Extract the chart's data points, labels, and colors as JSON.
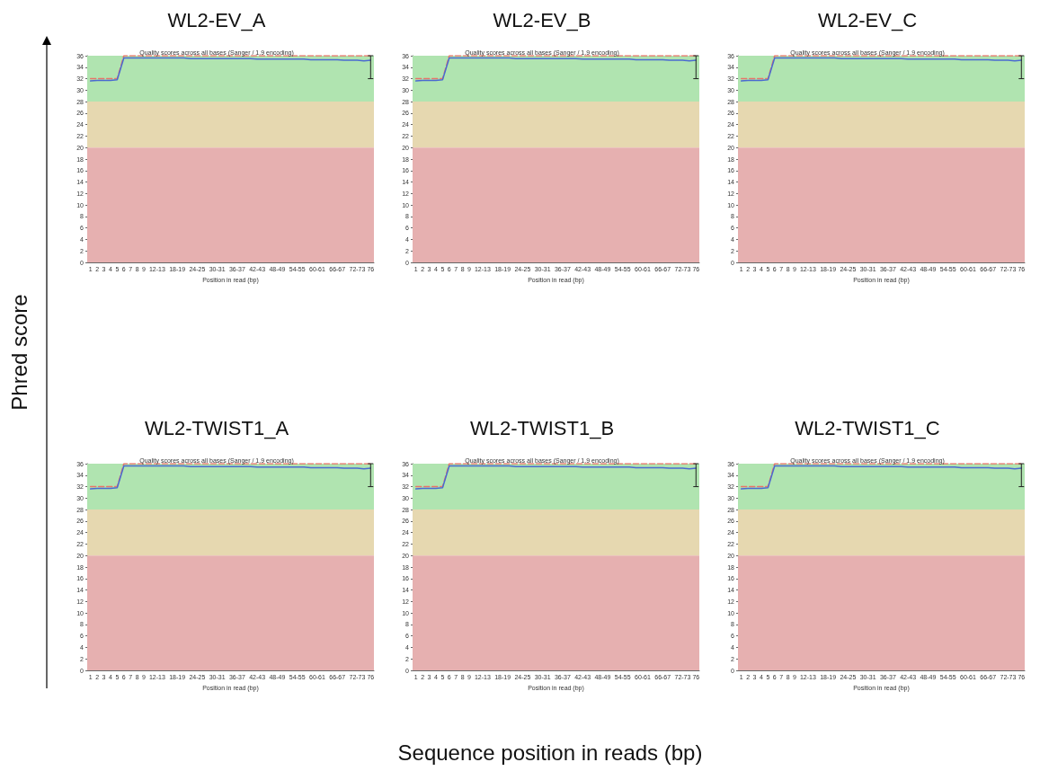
{
  "chart_data": [
    {
      "type": "line",
      "title": "WL2-EV_A",
      "subtitle": "Quality scores across all bases (Sanger / 1.9 encoding)",
      "xlabel": "Position in read (bp)",
      "categories": [
        "1",
        "2",
        "3",
        "4",
        "5",
        "6",
        "7",
        "8",
        "9",
        null,
        "12-13",
        null,
        null,
        "18-19",
        null,
        null,
        "24-25",
        null,
        null,
        "30-31",
        null,
        null,
        "36-37",
        null,
        null,
        "42-43",
        null,
        null,
        "48-49",
        null,
        null,
        "54-55",
        null,
        null,
        "60-61",
        null,
        null,
        "66-67",
        null,
        null,
        "72-73",
        null,
        "76"
      ],
      "ylim": [
        0,
        36
      ],
      "yticks": [
        0,
        2,
        4,
        6,
        8,
        10,
        12,
        14,
        16,
        18,
        20,
        22,
        24,
        26,
        28,
        30,
        32,
        34,
        36
      ],
      "grid": false,
      "marker": "none",
      "bands": [
        {
          "axis": "y",
          "from": 28,
          "to": 36,
          "color": "#b0e4b0"
        },
        {
          "axis": "y",
          "from": 20,
          "to": 28,
          "color": "#e6d8b0"
        },
        {
          "axis": "y",
          "from": 0,
          "to": 20,
          "color": "#e6b0b0"
        }
      ],
      "series": [
        {
          "color": "#e8756a",
          "line_style": "dashed",
          "values": [
            32,
            32,
            32,
            32,
            32,
            36,
            36,
            36,
            36,
            36,
            36,
            36,
            36,
            36,
            36,
            36,
            36,
            36,
            36,
            36,
            36,
            36,
            36,
            36,
            36,
            36,
            36,
            36,
            36,
            36,
            36,
            36,
            36,
            36,
            36,
            36,
            36,
            36,
            36,
            36,
            36,
            36,
            36
          ],
          "errors": [
            null,
            null,
            null,
            null,
            null,
            null,
            null,
            null,
            null,
            null,
            null,
            null,
            null,
            null,
            null,
            null,
            null,
            null,
            null,
            null,
            null,
            null,
            null,
            null,
            null,
            null,
            null,
            null,
            null,
            null,
            null,
            null,
            null,
            null,
            null,
            null,
            null,
            null,
            null,
            null,
            null,
            null,
            [
              32,
              36
            ]
          ]
        },
        {
          "color": "#4a6ad0",
          "line_style": "solid",
          "values": [
            31.6,
            31.7,
            31.7,
            31.7,
            31.8,
            35.6,
            35.6,
            35.6,
            35.6,
            35.6,
            35.6,
            35.6,
            35.6,
            35.6,
            35.6,
            35.5,
            35.5,
            35.5,
            35.5,
            35.5,
            35.5,
            35.5,
            35.5,
            35.5,
            35.5,
            35.4,
            35.4,
            35.4,
            35.4,
            35.4,
            35.4,
            35.4,
            35.4,
            35.3,
            35.3,
            35.3,
            35.3,
            35.3,
            35.2,
            35.2,
            35.2,
            35.1,
            35.2
          ]
        }
      ]
    },
    {
      "type": "line",
      "title": "WL2-EV_B",
      "subtitle": "Quality scores across all bases (Sanger / 1.9 encoding)",
      "xlabel": "Position in read (bp)",
      "categories": [
        "1",
        "2",
        "3",
        "4",
        "5",
        "6",
        "7",
        "8",
        "9",
        null,
        "12-13",
        null,
        null,
        "18-19",
        null,
        null,
        "24-25",
        null,
        null,
        "30-31",
        null,
        null,
        "36-37",
        null,
        null,
        "42-43",
        null,
        null,
        "48-49",
        null,
        null,
        "54-55",
        null,
        null,
        "60-61",
        null,
        null,
        "66-67",
        null,
        null,
        "72-73",
        null,
        "76"
      ],
      "ylim": [
        0,
        36
      ],
      "yticks": [
        0,
        2,
        4,
        6,
        8,
        10,
        12,
        14,
        16,
        18,
        20,
        22,
        24,
        26,
        28,
        30,
        32,
        34,
        36
      ],
      "grid": false,
      "marker": "none",
      "bands": [
        {
          "axis": "y",
          "from": 28,
          "to": 36,
          "color": "#b0e4b0"
        },
        {
          "axis": "y",
          "from": 20,
          "to": 28,
          "color": "#e6d8b0"
        },
        {
          "axis": "y",
          "from": 0,
          "to": 20,
          "color": "#e6b0b0"
        }
      ],
      "series": [
        {
          "color": "#e8756a",
          "line_style": "dashed",
          "values": [
            32,
            32,
            32,
            32,
            32,
            36,
            36,
            36,
            36,
            36,
            36,
            36,
            36,
            36,
            36,
            36,
            36,
            36,
            36,
            36,
            36,
            36,
            36,
            36,
            36,
            36,
            36,
            36,
            36,
            36,
            36,
            36,
            36,
            36,
            36,
            36,
            36,
            36,
            36,
            36,
            36,
            36,
            36
          ],
          "errors": [
            null,
            null,
            null,
            null,
            null,
            null,
            null,
            null,
            null,
            null,
            null,
            null,
            null,
            null,
            null,
            null,
            null,
            null,
            null,
            null,
            null,
            null,
            null,
            null,
            null,
            null,
            null,
            null,
            null,
            null,
            null,
            null,
            null,
            null,
            null,
            null,
            null,
            null,
            null,
            null,
            null,
            null,
            [
              32,
              36
            ]
          ]
        },
        {
          "color": "#4a6ad0",
          "line_style": "solid",
          "values": [
            31.6,
            31.7,
            31.7,
            31.7,
            31.8,
            35.6,
            35.6,
            35.6,
            35.6,
            35.6,
            35.6,
            35.6,
            35.6,
            35.6,
            35.6,
            35.5,
            35.5,
            35.5,
            35.5,
            35.5,
            35.5,
            35.5,
            35.5,
            35.5,
            35.5,
            35.4,
            35.4,
            35.4,
            35.4,
            35.4,
            35.4,
            35.4,
            35.4,
            35.3,
            35.3,
            35.3,
            35.3,
            35.3,
            35.2,
            35.2,
            35.2,
            35.1,
            35.2
          ]
        }
      ]
    },
    {
      "type": "line",
      "title": "WL2-EV_C",
      "subtitle": "Quality scores across all bases (Sanger / 1.9 encoding)",
      "xlabel": "Position in read (bp)",
      "categories": [
        "1",
        "2",
        "3",
        "4",
        "5",
        "6",
        "7",
        "8",
        "9",
        null,
        "12-13",
        null,
        null,
        "18-19",
        null,
        null,
        "24-25",
        null,
        null,
        "30-31",
        null,
        null,
        "36-37",
        null,
        null,
        "42-43",
        null,
        null,
        "48-49",
        null,
        null,
        "54-55",
        null,
        null,
        "60-61",
        null,
        null,
        "66-67",
        null,
        null,
        "72-73",
        null,
        "76"
      ],
      "ylim": [
        0,
        36
      ],
      "yticks": [
        0,
        2,
        4,
        6,
        8,
        10,
        12,
        14,
        16,
        18,
        20,
        22,
        24,
        26,
        28,
        30,
        32,
        34,
        36
      ],
      "grid": false,
      "marker": "none",
      "bands": [
        {
          "axis": "y",
          "from": 28,
          "to": 36,
          "color": "#b0e4b0"
        },
        {
          "axis": "y",
          "from": 20,
          "to": 28,
          "color": "#e6d8b0"
        },
        {
          "axis": "y",
          "from": 0,
          "to": 20,
          "color": "#e6b0b0"
        }
      ],
      "series": [
        {
          "color": "#e8756a",
          "line_style": "dashed",
          "values": [
            32,
            32,
            32,
            32,
            32,
            36,
            36,
            36,
            36,
            36,
            36,
            36,
            36,
            36,
            36,
            36,
            36,
            36,
            36,
            36,
            36,
            36,
            36,
            36,
            36,
            36,
            36,
            36,
            36,
            36,
            36,
            36,
            36,
            36,
            36,
            36,
            36,
            36,
            36,
            36,
            36,
            36,
            36
          ],
          "errors": [
            null,
            null,
            null,
            null,
            null,
            null,
            null,
            null,
            null,
            null,
            null,
            null,
            null,
            null,
            null,
            null,
            null,
            null,
            null,
            null,
            null,
            null,
            null,
            null,
            null,
            null,
            null,
            null,
            null,
            null,
            null,
            null,
            null,
            null,
            null,
            null,
            null,
            null,
            null,
            null,
            null,
            null,
            [
              32,
              36
            ]
          ]
        },
        {
          "color": "#4a6ad0",
          "line_style": "solid",
          "values": [
            31.6,
            31.7,
            31.7,
            31.7,
            31.8,
            35.6,
            35.6,
            35.6,
            35.6,
            35.6,
            35.6,
            35.6,
            35.6,
            35.6,
            35.6,
            35.5,
            35.5,
            35.5,
            35.5,
            35.5,
            35.5,
            35.5,
            35.5,
            35.5,
            35.5,
            35.4,
            35.4,
            35.4,
            35.4,
            35.4,
            35.4,
            35.4,
            35.4,
            35.3,
            35.3,
            35.3,
            35.3,
            35.3,
            35.2,
            35.2,
            35.2,
            35.1,
            35.2
          ]
        }
      ]
    },
    {
      "type": "line",
      "title": "WL2-TWIST1_A",
      "subtitle": "Quality scores across all bases (Sanger / 1.9 encoding)",
      "xlabel": "Position in read (bp)",
      "categories": [
        "1",
        "2",
        "3",
        "4",
        "5",
        "6",
        "7",
        "8",
        "9",
        null,
        "12-13",
        null,
        null,
        "18-19",
        null,
        null,
        "24-25",
        null,
        null,
        "30-31",
        null,
        null,
        "36-37",
        null,
        null,
        "42-43",
        null,
        null,
        "48-49",
        null,
        null,
        "54-55",
        null,
        null,
        "60-61",
        null,
        null,
        "66-67",
        null,
        null,
        "72-73",
        null,
        "76"
      ],
      "ylim": [
        0,
        36
      ],
      "yticks": [
        0,
        2,
        4,
        6,
        8,
        10,
        12,
        14,
        16,
        18,
        20,
        22,
        24,
        26,
        28,
        30,
        32,
        34,
        36
      ],
      "grid": false,
      "marker": "none",
      "bands": [
        {
          "axis": "y",
          "from": 28,
          "to": 36,
          "color": "#b0e4b0"
        },
        {
          "axis": "y",
          "from": 20,
          "to": 28,
          "color": "#e6d8b0"
        },
        {
          "axis": "y",
          "from": 0,
          "to": 20,
          "color": "#e6b0b0"
        }
      ],
      "series": [
        {
          "color": "#e8756a",
          "line_style": "dashed",
          "values": [
            32,
            32,
            32,
            32,
            32,
            36,
            36,
            36,
            36,
            36,
            36,
            36,
            36,
            36,
            36,
            36,
            36,
            36,
            36,
            36,
            36,
            36,
            36,
            36,
            36,
            36,
            36,
            36,
            36,
            36,
            36,
            36,
            36,
            36,
            36,
            36,
            36,
            36,
            36,
            36,
            36,
            36,
            36
          ],
          "errors": [
            null,
            null,
            null,
            null,
            null,
            null,
            null,
            null,
            null,
            null,
            null,
            null,
            null,
            null,
            null,
            null,
            null,
            null,
            null,
            null,
            null,
            null,
            null,
            null,
            null,
            null,
            null,
            null,
            null,
            null,
            null,
            null,
            null,
            null,
            null,
            null,
            null,
            null,
            null,
            null,
            null,
            null,
            [
              32,
              36
            ]
          ]
        },
        {
          "color": "#4a6ad0",
          "line_style": "solid",
          "values": [
            31.6,
            31.7,
            31.7,
            31.7,
            31.8,
            35.6,
            35.6,
            35.6,
            35.6,
            35.6,
            35.6,
            35.6,
            35.6,
            35.6,
            35.6,
            35.5,
            35.5,
            35.5,
            35.5,
            35.5,
            35.5,
            35.5,
            35.5,
            35.5,
            35.5,
            35.4,
            35.4,
            35.4,
            35.4,
            35.4,
            35.4,
            35.4,
            35.4,
            35.3,
            35.3,
            35.3,
            35.3,
            35.3,
            35.2,
            35.2,
            35.2,
            35.1,
            35.2
          ]
        }
      ]
    },
    {
      "type": "line",
      "title": "WL2-TWIST1_B",
      "subtitle": "Quality scores across all bases (Sanger / 1.9 encoding)",
      "xlabel": "Position in read (bp)",
      "categories": [
        "1",
        "2",
        "3",
        "4",
        "5",
        "6",
        "7",
        "8",
        "9",
        null,
        "12-13",
        null,
        null,
        "18-19",
        null,
        null,
        "24-25",
        null,
        null,
        "30-31",
        null,
        null,
        "36-37",
        null,
        null,
        "42-43",
        null,
        null,
        "48-49",
        null,
        null,
        "54-55",
        null,
        null,
        "60-61",
        null,
        null,
        "66-67",
        null,
        null,
        "72-73",
        null,
        "76"
      ],
      "ylim": [
        0,
        36
      ],
      "yticks": [
        0,
        2,
        4,
        6,
        8,
        10,
        12,
        14,
        16,
        18,
        20,
        22,
        24,
        26,
        28,
        30,
        32,
        34,
        36
      ],
      "grid": false,
      "marker": "none",
      "bands": [
        {
          "axis": "y",
          "from": 28,
          "to": 36,
          "color": "#b0e4b0"
        },
        {
          "axis": "y",
          "from": 20,
          "to": 28,
          "color": "#e6d8b0"
        },
        {
          "axis": "y",
          "from": 0,
          "to": 20,
          "color": "#e6b0b0"
        }
      ],
      "series": [
        {
          "color": "#e8756a",
          "line_style": "dashed",
          "values": [
            32,
            32,
            32,
            32,
            32,
            36,
            36,
            36,
            36,
            36,
            36,
            36,
            36,
            36,
            36,
            36,
            36,
            36,
            36,
            36,
            36,
            36,
            36,
            36,
            36,
            36,
            36,
            36,
            36,
            36,
            36,
            36,
            36,
            36,
            36,
            36,
            36,
            36,
            36,
            36,
            36,
            36,
            36
          ],
          "errors": [
            null,
            null,
            null,
            null,
            null,
            null,
            null,
            null,
            null,
            null,
            null,
            null,
            null,
            null,
            null,
            null,
            null,
            null,
            null,
            null,
            null,
            null,
            null,
            null,
            null,
            null,
            null,
            null,
            null,
            null,
            null,
            null,
            null,
            null,
            null,
            null,
            null,
            null,
            null,
            null,
            null,
            null,
            [
              32,
              36
            ]
          ]
        },
        {
          "color": "#4a6ad0",
          "line_style": "solid",
          "values": [
            31.6,
            31.7,
            31.7,
            31.7,
            31.8,
            35.6,
            35.6,
            35.6,
            35.6,
            35.6,
            35.6,
            35.6,
            35.6,
            35.6,
            35.6,
            35.5,
            35.5,
            35.5,
            35.5,
            35.5,
            35.5,
            35.5,
            35.5,
            35.5,
            35.5,
            35.4,
            35.4,
            35.4,
            35.4,
            35.4,
            35.4,
            35.4,
            35.4,
            35.3,
            35.3,
            35.3,
            35.3,
            35.3,
            35.2,
            35.2,
            35.2,
            35.1,
            35.2
          ]
        }
      ]
    },
    {
      "type": "line",
      "title": "WL2-TWIST1_C",
      "subtitle": "Quality scores across all bases (Sanger / 1.9 encoding)",
      "xlabel": "Position in read (bp)",
      "categories": [
        "1",
        "2",
        "3",
        "4",
        "5",
        "6",
        "7",
        "8",
        "9",
        null,
        "12-13",
        null,
        null,
        "18-19",
        null,
        null,
        "24-25",
        null,
        null,
        "30-31",
        null,
        null,
        "36-37",
        null,
        null,
        "42-43",
        null,
        null,
        "48-49",
        null,
        null,
        "54-55",
        null,
        null,
        "60-61",
        null,
        null,
        "66-67",
        null,
        null,
        "72-73",
        null,
        "76"
      ],
      "ylim": [
        0,
        36
      ],
      "yticks": [
        0,
        2,
        4,
        6,
        8,
        10,
        12,
        14,
        16,
        18,
        20,
        22,
        24,
        26,
        28,
        30,
        32,
        34,
        36
      ],
      "grid": false,
      "marker": "none",
      "bands": [
        {
          "axis": "y",
          "from": 28,
          "to": 36,
          "color": "#b0e4b0"
        },
        {
          "axis": "y",
          "from": 20,
          "to": 28,
          "color": "#e6d8b0"
        },
        {
          "axis": "y",
          "from": 0,
          "to": 20,
          "color": "#e6b0b0"
        }
      ],
      "series": [
        {
          "color": "#e8756a",
          "line_style": "dashed",
          "values": [
            32,
            32,
            32,
            32,
            32,
            36,
            36,
            36,
            36,
            36,
            36,
            36,
            36,
            36,
            36,
            36,
            36,
            36,
            36,
            36,
            36,
            36,
            36,
            36,
            36,
            36,
            36,
            36,
            36,
            36,
            36,
            36,
            36,
            36,
            36,
            36,
            36,
            36,
            36,
            36,
            36,
            36,
            36
          ],
          "errors": [
            null,
            null,
            null,
            null,
            null,
            null,
            null,
            null,
            null,
            null,
            null,
            null,
            null,
            null,
            null,
            null,
            null,
            null,
            null,
            null,
            null,
            null,
            null,
            null,
            null,
            null,
            null,
            null,
            null,
            null,
            null,
            null,
            null,
            null,
            null,
            null,
            null,
            null,
            null,
            null,
            null,
            null,
            [
              32,
              36
            ]
          ]
        },
        {
          "color": "#4a6ad0",
          "line_style": "solid",
          "values": [
            31.6,
            31.7,
            31.7,
            31.7,
            31.8,
            35.6,
            35.6,
            35.6,
            35.6,
            35.6,
            35.6,
            35.6,
            35.6,
            35.6,
            35.6,
            35.5,
            35.5,
            35.5,
            35.5,
            35.5,
            35.5,
            35.5,
            35.5,
            35.5,
            35.5,
            35.4,
            35.4,
            35.4,
            35.4,
            35.4,
            35.4,
            35.4,
            35.4,
            35.3,
            35.3,
            35.3,
            35.3,
            35.3,
            35.2,
            35.2,
            35.2,
            35.1,
            35.2
          ]
        }
      ]
    },
    {
      "type": "other",
      "xlabel": "Sequence position in reads (bp)",
      "ylabel": "Phred score"
    }
  ]
}
